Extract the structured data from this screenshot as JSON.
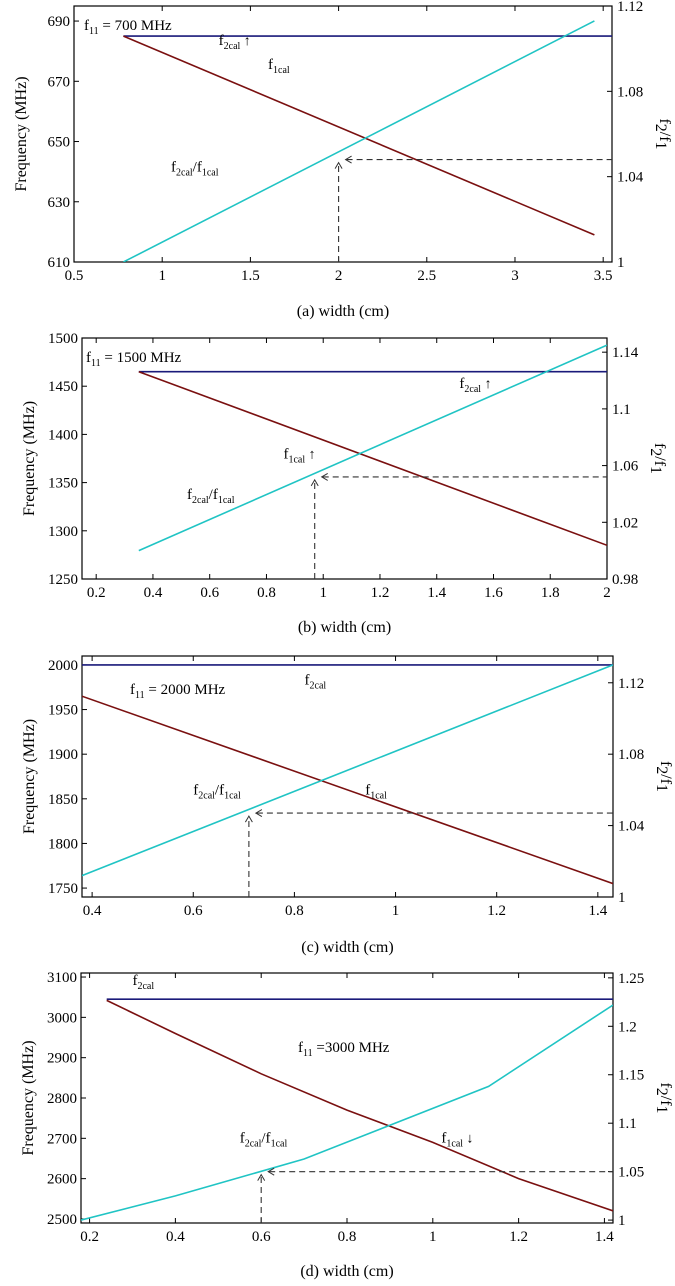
{
  "figure": {
    "panels": [
      {
        "caption": "(a) width (cm)",
        "title": {
          "main": "f",
          "sub": "11",
          "rest": " = 700 MHz"
        }
      },
      {
        "caption": "(b) width (cm)",
        "title": {
          "main": "f",
          "sub": "11",
          "rest": " = 1500 MHz"
        }
      },
      {
        "caption": "(c) width (cm)",
        "title": {
          "main": "f",
          "sub": "11",
          "rest": " = 2000 MHz"
        }
      },
      {
        "caption": "(d) width (cm)",
        "title": {
          "main": "f",
          "sub": "11",
          "rest": " =3000 MHz"
        }
      }
    ]
  },
  "chart_data": [
    {
      "type": "line",
      "title": "f11 = 700 MHz",
      "xlabel": "(a) width (cm)",
      "ylabel": "Frequency (MHz)",
      "y2label": "f2/f1",
      "xlim": [
        0.5,
        3.55
      ],
      "ylim": [
        610,
        695
      ],
      "y2lim": [
        1.0,
        1.12
      ],
      "xticks": [
        "0.5",
        "1",
        "1.5",
        "2",
        "2.5",
        "3",
        "3.5"
      ],
      "xtick_values": [
        0.5,
        1,
        1.5,
        2,
        2.5,
        3,
        3.5
      ],
      "yticks": [
        "610",
        "630",
        "650",
        "670",
        "690"
      ],
      "ytick_values": [
        610,
        630,
        650,
        670,
        690
      ],
      "y2ticks": [
        "1",
        "1.04",
        "1.08",
        "1.12"
      ],
      "y2tick_values": [
        1.0,
        1.04,
        1.08,
        1.12
      ],
      "series": [
        {
          "name": "f2cal",
          "axis": "left",
          "color": "#1a1a7a",
          "x": [
            0.78,
            3.55
          ],
          "y": [
            685,
            685
          ]
        },
        {
          "name": "f1cal",
          "axis": "left",
          "color": "#7a1010",
          "x": [
            0.78,
            3.45
          ],
          "y": [
            685,
            619
          ]
        },
        {
          "name": "f2cal/f1cal",
          "axis": "right",
          "color": "#20c4c4",
          "x": [
            0.78,
            3.45
          ],
          "y": [
            1.0,
            1.113
          ]
        }
      ],
      "annotations": [
        {
          "label": "f2cal",
          "main": "f",
          "sub": "2cal",
          "arrow": "↑",
          "x": 1.32,
          "y": 682
        },
        {
          "label": "f1cal",
          "main": "f",
          "sub": "1cal",
          "arrow": "",
          "x": 1.6,
          "y": 674
        },
        {
          "label": "f2cal/f1cal",
          "main": "f",
          "sub": "2cal",
          "main2": "/f",
          "sub2": "1cal",
          "arrow": "",
          "x": 1.05,
          "y": 640
        }
      ],
      "guide": {
        "x": 2.0,
        "y2": 1.048
      }
    },
    {
      "type": "line",
      "title": "f11 = 1500 MHz",
      "xlabel": "(b) width (cm)",
      "ylabel": "Frequency (MHz)",
      "y2label": "f2/f1",
      "xlim": [
        0.15,
        2.0
      ],
      "ylim": [
        1250,
        1500
      ],
      "y2lim": [
        0.98,
        1.15
      ],
      "xticks": [
        "0.2",
        "0.4",
        "0.6",
        "0.8",
        "1",
        "1.2",
        "1.4",
        "1.6",
        "1.8",
        "2"
      ],
      "xtick_values": [
        0.2,
        0.4,
        0.6,
        0.8,
        1.0,
        1.2,
        1.4,
        1.6,
        1.8,
        2.0
      ],
      "yticks": [
        "1250",
        "1300",
        "1350",
        "1400",
        "1450",
        "1500"
      ],
      "ytick_values": [
        1250,
        1300,
        1350,
        1400,
        1450,
        1500
      ],
      "y2ticks": [
        "0.98",
        "1.02",
        "1.06",
        "1.1",
        "1.14"
      ],
      "y2tick_values": [
        0.98,
        1.02,
        1.06,
        1.1,
        1.14
      ],
      "series": [
        {
          "name": "f2cal",
          "axis": "left",
          "color": "#1a1a7a",
          "x": [
            0.35,
            2.0
          ],
          "y": [
            1465,
            1465
          ]
        },
        {
          "name": "f1cal",
          "axis": "left",
          "color": "#7a1010",
          "x": [
            0.35,
            2.0
          ],
          "y": [
            1465,
            1285
          ]
        },
        {
          "name": "f2cal/f1cal",
          "axis": "right",
          "color": "#20c4c4",
          "x": [
            0.35,
            2.0
          ],
          "y": [
            1.0,
            1.145
          ]
        }
      ],
      "annotations": [
        {
          "label": "f2cal",
          "main": "f",
          "sub": "2cal",
          "arrow": "↑",
          "x": 1.48,
          "y": 1448
        },
        {
          "label": "f1cal",
          "main": "f",
          "sub": "1cal",
          "arrow": "↑",
          "x": 0.86,
          "y": 1375
        },
        {
          "label": "f2cal/f1cal",
          "main": "f",
          "sub": "2cal",
          "main2": "/f",
          "sub2": "1cal",
          "arrow": "",
          "x": 0.52,
          "y": 1333
        }
      ],
      "guide": {
        "x": 0.97,
        "y2": 1.052
      }
    },
    {
      "type": "line",
      "title": "f11 = 2000 MHz",
      "xlabel": "(c) width (cm)",
      "ylabel": "Frequency (MHz)",
      "y2label": "f2/f1",
      "xlim": [
        0.38,
        1.43
      ],
      "ylim": [
        1740,
        2010
      ],
      "y2lim": [
        1.0,
        1.135
      ],
      "xticks": [
        "0.4",
        "0.6",
        "0.8",
        "1",
        "1.2",
        "1.4"
      ],
      "xtick_values": [
        0.4,
        0.6,
        0.8,
        1.0,
        1.2,
        1.4
      ],
      "yticks": [
        "1750",
        "1800",
        "1850",
        "1900",
        "1950",
        "2000"
      ],
      "ytick_values": [
        1750,
        1800,
        1850,
        1900,
        1950,
        2000
      ],
      "y2ticks": [
        "1",
        "1.04",
        "1.08",
        "1.12"
      ],
      "y2tick_values": [
        1.0,
        1.04,
        1.08,
        1.12
      ],
      "series": [
        {
          "name": "f2cal",
          "axis": "left",
          "color": "#1a1a7a",
          "x": [
            0.38,
            1.43
          ],
          "y": [
            2000,
            2000
          ]
        },
        {
          "name": "f1cal",
          "axis": "left",
          "color": "#7a1010",
          "x": [
            0.38,
            1.43
          ],
          "y": [
            1965,
            1755
          ]
        },
        {
          "name": "f2cal/f1cal",
          "axis": "right",
          "color": "#20c4c4",
          "x": [
            0.38,
            1.43
          ],
          "y": [
            1.012,
            1.13
          ]
        }
      ],
      "annotations": [
        {
          "label": "f2cal",
          "main": "f",
          "sub": "2cal",
          "arrow": "",
          "x": 0.82,
          "y": 1978
        },
        {
          "label": "f1cal",
          "main": "f",
          "sub": "1cal",
          "arrow": "",
          "x": 0.94,
          "y": 1855
        },
        {
          "label": "f2cal/f1cal",
          "main": "f",
          "sub": "2cal",
          "main2": "/f",
          "sub2": "1cal",
          "arrow": "",
          "x": 0.6,
          "y": 1855
        }
      ],
      "guide": {
        "x": 0.71,
        "y2": 1.047
      }
    },
    {
      "type": "line",
      "title": "f11 =3000 MHz",
      "xlabel": "(d) width (cm)",
      "ylabel": "Frequency (MHz)",
      "y2label": "f2/f1",
      "xlim": [
        0.18,
        1.42
      ],
      "ylim": [
        2490,
        3110
      ],
      "y2lim": [
        0.997,
        1.255
      ],
      "xticks": [
        "0.2",
        "0.4",
        "0.6",
        "0.8",
        "1",
        "1.2",
        "1.4"
      ],
      "xtick_values": [
        0.2,
        0.4,
        0.6,
        0.8,
        1.0,
        1.2,
        1.4
      ],
      "yticks": [
        "2500",
        "2600",
        "2700",
        "2800",
        "2900",
        "3000",
        "3100"
      ],
      "ytick_values": [
        2500,
        2600,
        2700,
        2800,
        2900,
        3000,
        3100
      ],
      "y2ticks": [
        "1",
        "1.05",
        "1.1",
        "1.15",
        "1.2",
        "1.25"
      ],
      "y2tick_values": [
        1.0,
        1.05,
        1.1,
        1.15,
        1.2,
        1.25
      ],
      "series": [
        {
          "name": "f2cal",
          "axis": "left",
          "color": "#1a1a7a",
          "x": [
            0.24,
            1.42
          ],
          "y": [
            3045,
            3045
          ]
        },
        {
          "name": "f1cal",
          "axis": "left",
          "color": "#7a1010",
          "x": [
            0.24,
            0.4,
            0.6,
            0.8,
            1.0,
            1.2,
            1.42
          ],
          "y": [
            3042,
            2960,
            2860,
            2770,
            2690,
            2600,
            2520
          ]
        },
        {
          "name": "f2cal/f1cal",
          "axis": "right",
          "color": "#20c4c4",
          "x": [
            0.18,
            0.4,
            0.7,
            1.13,
            1.42
          ],
          "y": [
            1.0,
            1.025,
            1.063,
            1.138,
            1.222
          ]
        }
      ],
      "annotations": [
        {
          "label": "f2cal",
          "main": "f",
          "sub": "2cal",
          "arrow": "",
          "x": 0.3,
          "y": 3080
        },
        {
          "label": "f1cal",
          "main": "f",
          "sub": "1cal",
          "arrow": "↓",
          "x": 1.02,
          "y": 2690
        },
        {
          "label": "f2cal/f1cal",
          "main": "f",
          "sub": "2cal",
          "main2": "/f",
          "sub2": "1cal",
          "arrow": "",
          "x": 0.55,
          "y": 2690
        }
      ],
      "guide": {
        "x": 0.6,
        "y2": 1.05
      }
    }
  ]
}
